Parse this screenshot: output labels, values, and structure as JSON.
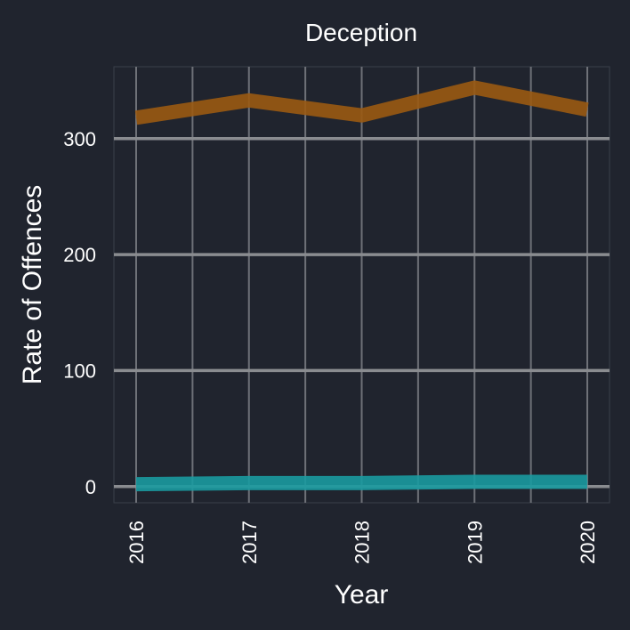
{
  "chart_data": {
    "type": "line",
    "title": "Deception",
    "xlabel": "Year",
    "ylabel": "Rate of Offences",
    "x": [
      "2016",
      "2017",
      "2018",
      "2019",
      "2020"
    ],
    "y_ticks": [
      "0",
      "100",
      "200",
      "300"
    ],
    "ylim": [
      -14,
      362
    ],
    "grid": true,
    "legend": "none",
    "series": [
      {
        "color": "#9a5a12",
        "values": [
          318,
          333,
          320,
          344,
          325
        ]
      },
      {
        "color": "#1a9aa0",
        "values": [
          2,
          3,
          3,
          4,
          4
        ]
      }
    ]
  }
}
